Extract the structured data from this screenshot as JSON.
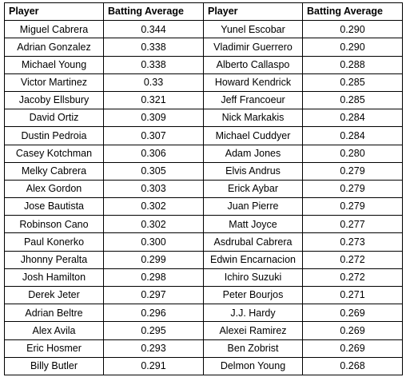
{
  "headers": [
    "Player",
    "Batting Average",
    "Player",
    "Batting Average"
  ],
  "rows": [
    [
      "Miguel Cabrera",
      "0.344",
      "Yunel Escobar",
      "0.290"
    ],
    [
      "Adrian Gonzalez",
      "0.338",
      "Vladimir Guerrero",
      "0.290"
    ],
    [
      "Michael Young",
      "0.338",
      "Alberto Callaspo",
      "0.288"
    ],
    [
      "Victor Martinez",
      "0.33",
      "Howard Kendrick",
      "0.285"
    ],
    [
      "Jacoby Ellsbury",
      "0.321",
      "Jeff Francoeur",
      "0.285"
    ],
    [
      "David Ortiz",
      "0.309",
      "Nick Markakis",
      "0.284"
    ],
    [
      "Dustin Pedroia",
      "0.307",
      "Michael Cuddyer",
      "0.284"
    ],
    [
      "Casey Kotchman",
      "0.306",
      "Adam Jones",
      "0.280"
    ],
    [
      "Melky Cabrera",
      "0.305",
      "Elvis Andrus",
      "0.279"
    ],
    [
      "Alex Gordon",
      "0.303",
      "Erick Aybar",
      "0.279"
    ],
    [
      "Jose Bautista",
      "0.302",
      "Juan Pierre",
      "0.279"
    ],
    [
      "Robinson Cano",
      "0.302",
      "Matt Joyce",
      "0.277"
    ],
    [
      "Paul Konerko",
      "0.300",
      "Asdrubal Cabrera",
      "0.273"
    ],
    [
      "Jhonny Peralta",
      "0.299",
      "Edwin Encarnacion",
      "0.272"
    ],
    [
      "Josh Hamilton",
      "0.298",
      "Ichiro Suzuki",
      "0.272"
    ],
    [
      "Derek Jeter",
      "0.297",
      "Peter Bourjos",
      "0.271"
    ],
    [
      "Adrian Beltre",
      "0.296",
      "J.J. Hardy",
      "0.269"
    ],
    [
      "Alex Avila",
      "0.295",
      "Alexei Ramirez",
      "0.269"
    ],
    [
      "Eric Hosmer",
      "0.293",
      "Ben Zobrist",
      "0.269"
    ],
    [
      "Billy Butler",
      "0.291",
      "Delmon Young",
      "0.268"
    ]
  ]
}
